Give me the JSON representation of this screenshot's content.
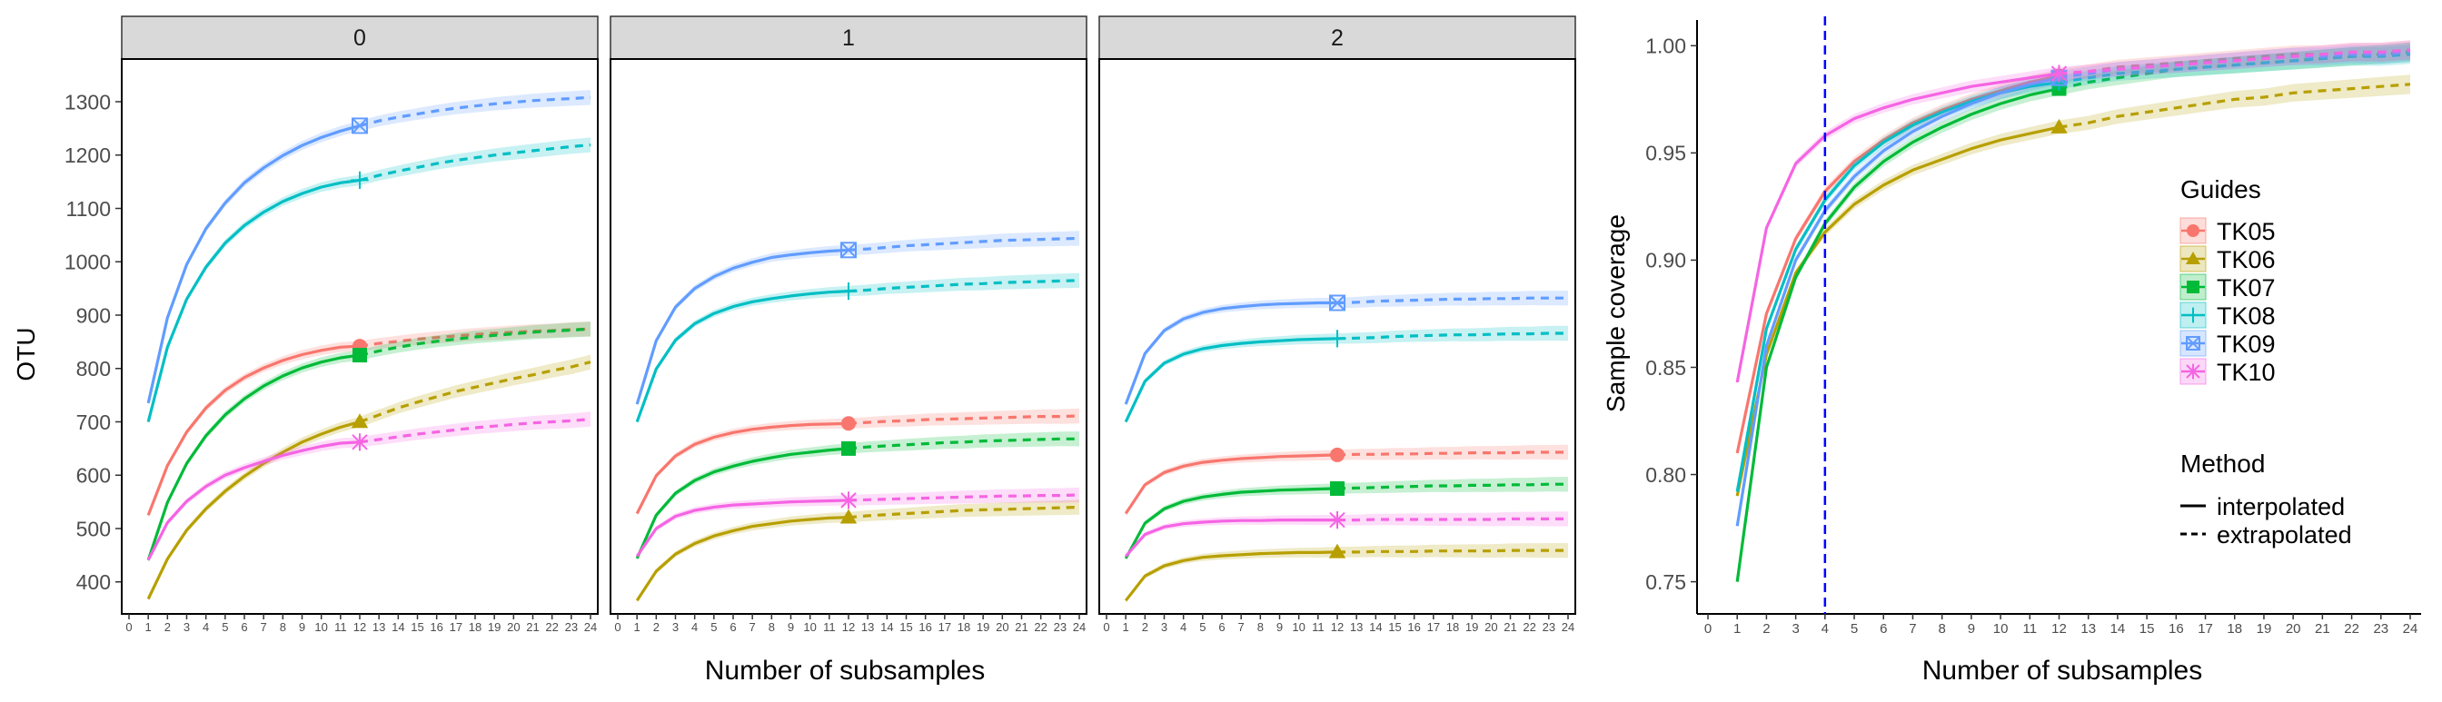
{
  "chart_data": [
    {
      "type": "line",
      "panel": "left-facets",
      "ylabel": "OTU",
      "xlabel": "Number of subsamples",
      "x_ticks": [
        "0",
        "1",
        "2",
        "3",
        "4",
        "5",
        "6",
        "7",
        "8",
        "9",
        "10",
        "11",
        "12",
        "13",
        "14",
        "15",
        "16",
        "17",
        "18",
        "19",
        "20",
        "21",
        "22",
        "23",
        "24"
      ],
      "y_ticks": [
        "400",
        "500",
        "600",
        "700",
        "800",
        "900",
        "1000",
        "1100",
        "1200",
        "1300"
      ],
      "xlim": [
        0,
        24
      ],
      "ylim": [
        340,
        1380
      ],
      "observed_x": 12,
      "facets": [
        {
          "label": "0",
          "series": [
            {
              "name": "TK05",
              "values": [
                525,
                618,
                681,
                726,
                759,
                783,
                801,
                815,
                826,
                834,
                840,
                842,
                847,
                851,
                855,
                858,
                861,
                864,
                866,
                868,
                870,
                871,
                873,
                874
              ]
            },
            {
              "name": "TK06",
              "values": [
                368,
                443,
                497,
                537,
                570,
                598,
                622,
                643,
                662,
                677,
                690,
                700,
                713,
                726,
                737,
                747,
                757,
                765,
                773,
                781,
                788,
                796,
                803,
                812
              ]
            },
            {
              "name": "TK07",
              "values": [
                441,
                549,
                622,
                674,
                713,
                743,
                767,
                786,
                801,
                812,
                820,
                825,
                833,
                840,
                846,
                851,
                855,
                859,
                862,
                865,
                868,
                870,
                872,
                874
              ]
            },
            {
              "name": "TK08",
              "values": [
                700,
                840,
                930,
                990,
                1035,
                1068,
                1093,
                1113,
                1128,
                1140,
                1148,
                1153,
                1162,
                1170,
                1177,
                1184,
                1190,
                1195,
                1200,
                1204,
                1208,
                1212,
                1216,
                1219
              ]
            },
            {
              "name": "TK09",
              "values": [
                735,
                895,
                995,
                1062,
                1110,
                1148,
                1176,
                1199,
                1218,
                1233,
                1245,
                1255,
                1264,
                1271,
                1277,
                1283,
                1288,
                1292,
                1296,
                1299,
                1302,
                1304,
                1306,
                1308
              ]
            },
            {
              "name": "TK10",
              "values": [
                441,
                511,
                551,
                579,
                600,
                614,
                626,
                637,
                646,
                654,
                660,
                662,
                667,
                672,
                677,
                681,
                685,
                689,
                692,
                695,
                698,
                700,
                702,
                705
              ]
            }
          ]
        },
        {
          "label": "1",
          "series": [
            {
              "name": "TK05",
              "values": [
                528,
                599,
                636,
                658,
                671,
                680,
                686,
                690,
                693,
                695,
                696,
                697,
                699,
                701,
                702,
                704,
                705,
                706,
                707,
                708,
                709,
                710,
                710,
                711
              ]
            },
            {
              "name": "TK06",
              "values": [
                365,
                420,
                452,
                472,
                486,
                496,
                504,
                509,
                514,
                517,
                520,
                521,
                524,
                526,
                528,
                530,
                532,
                534,
                535,
                536,
                537,
                538,
                539,
                540
              ]
            },
            {
              "name": "TK07",
              "values": [
                444,
                525,
                566,
                590,
                606,
                617,
                626,
                633,
                639,
                643,
                647,
                650,
                653,
                655,
                657,
                659,
                661,
                662,
                664,
                665,
                666,
                667,
                668,
                668
              ]
            },
            {
              "name": "TK08",
              "values": [
                700,
                799,
                853,
                884,
                903,
                916,
                925,
                931,
                936,
                940,
                943,
                945,
                947,
                950,
                952,
                954,
                956,
                958,
                959,
                961,
                962,
                963,
                964,
                965
              ]
            },
            {
              "name": "TK09",
              "values": [
                733,
                852,
                915,
                950,
                972,
                988,
                999,
                1008,
                1013,
                1017,
                1020,
                1022,
                1024,
                1027,
                1030,
                1032,
                1034,
                1036,
                1038,
                1040,
                1041,
                1042,
                1043,
                1044
              ]
            },
            {
              "name": "TK10",
              "values": [
                448,
                500,
                523,
                534,
                540,
                544,
                546,
                548,
                550,
                551,
                552,
                553,
                554,
                555,
                556,
                557,
                558,
                559,
                560,
                561,
                561,
                562,
                562,
                563
              ]
            }
          ]
        },
        {
          "label": "2",
          "series": [
            {
              "name": "TK05",
              "values": [
                528,
                582,
                605,
                617,
                624,
                628,
                631,
                633,
                635,
                636,
                637,
                638,
                639,
                639,
                640,
                640,
                641,
                641,
                642,
                642,
                642,
                643,
                643,
                643
              ]
            },
            {
              "name": "TK06",
              "values": [
                365,
                411,
                430,
                440,
                446,
                449,
                451,
                453,
                454,
                455,
                455,
                456,
                456,
                457,
                457,
                457,
                458,
                458,
                458,
                458,
                459,
                459,
                459,
                459
              ]
            },
            {
              "name": "TK07",
              "values": [
                444,
                510,
                537,
                551,
                559,
                564,
                568,
                570,
                572,
                573,
                574,
                575,
                576,
                577,
                578,
                579,
                580,
                580,
                581,
                581,
                582,
                582,
                583,
                583
              ]
            },
            {
              "name": "TK08",
              "values": [
                700,
                776,
                810,
                827,
                837,
                843,
                847,
                850,
                852,
                854,
                855,
                856,
                857,
                858,
                860,
                861,
                862,
                863,
                863,
                864,
                865,
                865,
                866,
                866
              ]
            },
            {
              "name": "TK09",
              "values": [
                733,
                828,
                871,
                893,
                905,
                912,
                916,
                919,
                921,
                922,
                923,
                923,
                924,
                926,
                927,
                928,
                929,
                930,
                930,
                931,
                931,
                932,
                932,
                932
              ]
            },
            {
              "name": "TK10",
              "values": [
                448,
                489,
                503,
                509,
                512,
                514,
                515,
                515,
                516,
                516,
                516,
                516,
                516,
                517,
                517,
                517,
                517,
                517,
                517,
                517,
                518,
                518,
                518,
                518
              ]
            }
          ]
        }
      ]
    },
    {
      "type": "line",
      "panel": "right",
      "ylabel": "Sample coverage",
      "xlabel": "Number of subsamples",
      "x_ticks": [
        "0",
        "1",
        "2",
        "3",
        "4",
        "5",
        "6",
        "7",
        "8",
        "9",
        "10",
        "11",
        "12",
        "13",
        "14",
        "15",
        "16",
        "17",
        "18",
        "19",
        "20",
        "21",
        "22",
        "23",
        "24"
      ],
      "y_ticks": [
        "0.75",
        "0.80",
        "0.85",
        "0.90",
        "0.95",
        "1.00"
      ],
      "xlim": [
        0,
        24
      ],
      "ylim": [
        0.735,
        1.012
      ],
      "observed_x": 12,
      "vline_x": 4,
      "series": [
        {
          "name": "TK05",
          "values": [
            0.81,
            0.875,
            0.91,
            0.932,
            0.946,
            0.956,
            0.964,
            0.97,
            0.975,
            0.979,
            0.983,
            0.986,
            0.988,
            0.99,
            0.991,
            0.992,
            0.993,
            0.994,
            0.995,
            0.996,
            0.996,
            0.997,
            0.997,
            0.998
          ]
        },
        {
          "name": "TK06",
          "values": [
            0.79,
            0.856,
            0.894,
            0.913,
            0.926,
            0.935,
            0.942,
            0.947,
            0.952,
            0.956,
            0.959,
            0.962,
            0.964,
            0.967,
            0.969,
            0.971,
            0.973,
            0.975,
            0.976,
            0.978,
            0.979,
            0.98,
            0.981,
            0.982
          ]
        },
        {
          "name": "TK07",
          "values": [
            0.75,
            0.85,
            0.892,
            0.917,
            0.934,
            0.946,
            0.955,
            0.962,
            0.968,
            0.973,
            0.977,
            0.98,
            0.983,
            0.985,
            0.987,
            0.989,
            0.99,
            0.991,
            0.992,
            0.993,
            0.994,
            0.995,
            0.996,
            0.997
          ]
        },
        {
          "name": "TK08",
          "values": [
            0.792,
            0.868,
            0.905,
            0.928,
            0.944,
            0.955,
            0.963,
            0.969,
            0.974,
            0.978,
            0.981,
            0.983,
            0.985,
            0.987,
            0.988,
            0.989,
            0.99,
            0.991,
            0.992,
            0.993,
            0.994,
            0.995,
            0.995,
            0.996
          ]
        },
        {
          "name": "TK09",
          "values": [
            0.776,
            0.86,
            0.9,
            0.923,
            0.939,
            0.951,
            0.96,
            0.967,
            0.973,
            0.978,
            0.982,
            0.985,
            0.987,
            0.989,
            0.99,
            0.991,
            0.992,
            0.993,
            0.994,
            0.995,
            0.995,
            0.996,
            0.996,
            0.997
          ]
        },
        {
          "name": "TK10",
          "values": [
            0.843,
            0.915,
            0.945,
            0.958,
            0.966,
            0.971,
            0.975,
            0.978,
            0.981,
            0.983,
            0.985,
            0.987,
            0.988,
            0.989,
            0.99,
            0.991,
            0.992,
            0.993,
            0.994,
            0.995,
            0.996,
            0.997,
            0.997,
            0.998
          ]
        }
      ]
    }
  ],
  "legend": {
    "guides_title": "Guides",
    "guides": [
      {
        "name": "TK05",
        "color": "#F8766D",
        "shape": "circle"
      },
      {
        "name": "TK06",
        "color": "#B79F00",
        "shape": "triangle"
      },
      {
        "name": "TK07",
        "color": "#00BA38",
        "shape": "square"
      },
      {
        "name": "TK08",
        "color": "#00BFC4",
        "shape": "plus"
      },
      {
        "name": "TK09",
        "color": "#619CFF",
        "shape": "square-cross"
      },
      {
        "name": "TK10",
        "color": "#F564E3",
        "shape": "asterisk"
      }
    ],
    "method_title": "Method",
    "methods": [
      {
        "name": "interpolated",
        "linetype": "solid"
      },
      {
        "name": "extrapolated",
        "linetype": "dashed"
      }
    ]
  },
  "colors": {
    "strip_fill": "#D9D9D9",
    "vline": "#0000FF"
  }
}
